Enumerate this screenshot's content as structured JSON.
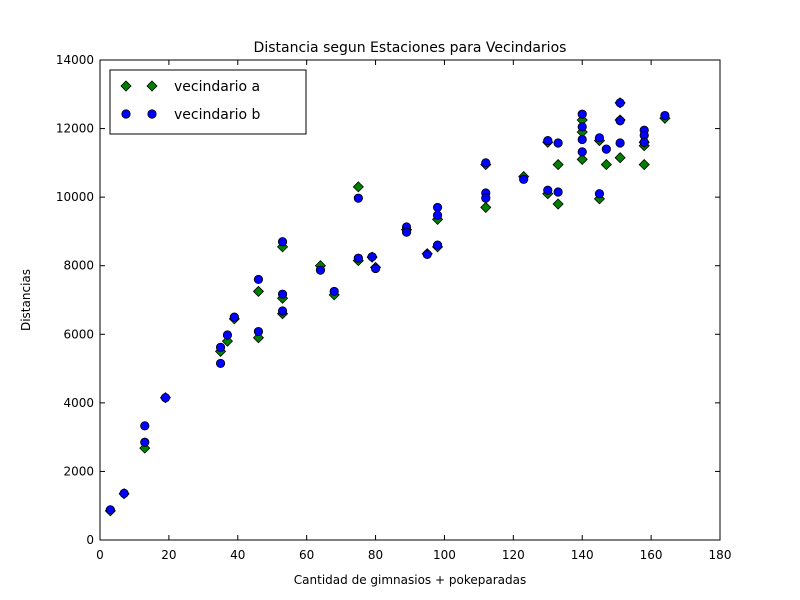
{
  "chart_data": {
    "type": "scatter",
    "title": "Distancia segun Estaciones para Vecindarios",
    "xlabel": "Cantidad de gimnasios + pokeparadas",
    "ylabel": "Distancias",
    "xlim": [
      0,
      180
    ],
    "ylim": [
      0,
      14000
    ],
    "xticks": [
      0,
      20,
      40,
      60,
      80,
      100,
      120,
      140,
      160,
      180
    ],
    "yticks": [
      0,
      2000,
      4000,
      6000,
      8000,
      10000,
      12000,
      14000
    ],
    "grid": false,
    "legend_position": "top-left",
    "series": [
      {
        "name": "vecindario a",
        "color": "#008000",
        "marker": "diamond",
        "points": [
          [
            3,
            850
          ],
          [
            7,
            1350
          ],
          [
            13,
            2680
          ],
          [
            19,
            4150
          ],
          [
            35,
            5500
          ],
          [
            37,
            5800
          ],
          [
            39,
            6450
          ],
          [
            46,
            7250
          ],
          [
            46,
            5900
          ],
          [
            53,
            7050
          ],
          [
            53,
            6600
          ],
          [
            53,
            8550
          ],
          [
            64,
            8000
          ],
          [
            68,
            7150
          ],
          [
            75,
            10300
          ],
          [
            75,
            8150
          ],
          [
            79,
            8250
          ],
          [
            80,
            7950
          ],
          [
            89,
            9050
          ],
          [
            95,
            8350
          ],
          [
            98,
            9350
          ],
          [
            98,
            8550
          ],
          [
            112,
            9700
          ],
          [
            112,
            10950
          ],
          [
            123,
            10600
          ],
          [
            130,
            10100
          ],
          [
            130,
            11600
          ],
          [
            133,
            10950
          ],
          [
            133,
            9800
          ],
          [
            140,
            12250
          ],
          [
            140,
            11900
          ],
          [
            140,
            11100
          ],
          [
            145,
            11650
          ],
          [
            145,
            9950
          ],
          [
            147,
            10950
          ],
          [
            151,
            12750
          ],
          [
            151,
            12250
          ],
          [
            151,
            11150
          ],
          [
            158,
            11500
          ],
          [
            158,
            11600
          ],
          [
            158,
            10950
          ],
          [
            164,
            12300
          ]
        ]
      },
      {
        "name": "vecindario b",
        "color": "#0000ff",
        "marker": "circle",
        "points": [
          [
            3,
            880
          ],
          [
            7,
            1360
          ],
          [
            13,
            2850
          ],
          [
            13,
            3330
          ],
          [
            19,
            4150
          ],
          [
            35,
            5150
          ],
          [
            35,
            5620
          ],
          [
            37,
            5980
          ],
          [
            39,
            6500
          ],
          [
            46,
            7600
          ],
          [
            46,
            6080
          ],
          [
            53,
            8700
          ],
          [
            53,
            7170
          ],
          [
            53,
            6680
          ],
          [
            64,
            7870
          ],
          [
            68,
            7250
          ],
          [
            75,
            9970
          ],
          [
            75,
            8220
          ],
          [
            79,
            8260
          ],
          [
            80,
            7920
          ],
          [
            89,
            9130
          ],
          [
            89,
            8980
          ],
          [
            95,
            8330
          ],
          [
            98,
            9700
          ],
          [
            98,
            9470
          ],
          [
            98,
            8600
          ],
          [
            112,
            11000
          ],
          [
            112,
            10120
          ],
          [
            112,
            9970
          ],
          [
            123,
            10520
          ],
          [
            130,
            11650
          ],
          [
            130,
            10200
          ],
          [
            133,
            11580
          ],
          [
            133,
            10150
          ],
          [
            140,
            12420
          ],
          [
            140,
            12050
          ],
          [
            140,
            11680
          ],
          [
            140,
            11320
          ],
          [
            145,
            11730
          ],
          [
            145,
            10100
          ],
          [
            147,
            11400
          ],
          [
            151,
            12750
          ],
          [
            151,
            12230
          ],
          [
            151,
            11580
          ],
          [
            158,
            11950
          ],
          [
            158,
            11800
          ],
          [
            158,
            11600
          ],
          [
            164,
            12380
          ]
        ]
      }
    ]
  }
}
